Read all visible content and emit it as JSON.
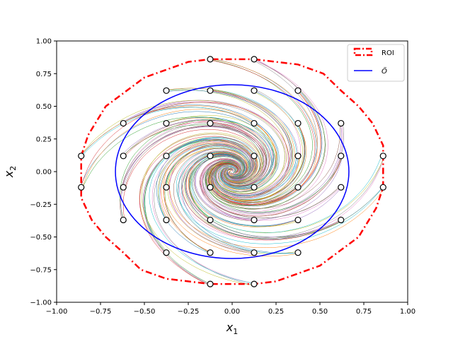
{
  "chart_data": {
    "type": "line",
    "xlabel": "x",
    "xlabel_sub": "1",
    "ylabel": "x",
    "ylabel_sub": "2",
    "xlim": [
      -1.0,
      1.0
    ],
    "ylim": [
      -1.0,
      1.0
    ],
    "xticks": [
      "-1.00",
      "-0.75",
      "-0.50",
      "-0.25",
      "0.00",
      "0.25",
      "0.50",
      "0.75",
      "1.00"
    ],
    "yticks": [
      "-1.00",
      "-0.75",
      "-0.50",
      "-0.25",
      "0.00",
      "0.25",
      "0.50",
      "0.75",
      "1.00"
    ],
    "grid": false,
    "legend": {
      "placement": "top-right",
      "entries": [
        {
          "label": "ROI",
          "color": "#ff0000",
          "style": "dashdot-box"
        },
        {
          "label": "Õ",
          "color": "#0000ff",
          "style": "solid-line"
        }
      ]
    },
    "roi_boundary": {
      "color": "#ff0000",
      "points": [
        [
          0.125,
          0.86
        ],
        [
          0.375,
          0.82
        ],
        [
          0.52,
          0.75
        ],
        [
          0.62,
          0.62
        ],
        [
          0.72,
          0.5
        ],
        [
          0.8,
          0.37
        ],
        [
          0.86,
          0.2
        ],
        [
          0.86,
          0.12
        ],
        [
          0.86,
          -0.12
        ],
        [
          0.82,
          -0.28
        ],
        [
          0.72,
          -0.5
        ],
        [
          0.6,
          -0.62
        ],
        [
          0.5,
          -0.72
        ],
        [
          0.25,
          -0.84
        ],
        [
          0.125,
          -0.86
        ],
        [
          -0.125,
          -0.86
        ],
        [
          -0.375,
          -0.82
        ],
        [
          -0.52,
          -0.75
        ],
        [
          -0.62,
          -0.62
        ],
        [
          -0.72,
          -0.5
        ],
        [
          -0.8,
          -0.37
        ],
        [
          -0.86,
          -0.2
        ],
        [
          -0.86,
          -0.12
        ],
        [
          -0.86,
          0.12
        ],
        [
          -0.82,
          0.28
        ],
        [
          -0.72,
          0.5
        ],
        [
          -0.6,
          0.62
        ],
        [
          -0.5,
          0.72
        ],
        [
          -0.25,
          0.84
        ],
        [
          -0.125,
          0.86
        ],
        [
          0.125,
          0.86
        ]
      ]
    },
    "ellipse": {
      "color": "#0000ff",
      "center": [
        0.0,
        0.0
      ],
      "rx": 0.665,
      "ry": 0.665
    },
    "initial_points": [
      [
        -0.125,
        0.86
      ],
      [
        0.125,
        0.86
      ],
      [
        -0.375,
        0.62
      ],
      [
        -0.125,
        0.62
      ],
      [
        0.125,
        0.62
      ],
      [
        0.375,
        0.62
      ],
      [
        -0.62,
        0.37
      ],
      [
        -0.375,
        0.37
      ],
      [
        -0.125,
        0.37
      ],
      [
        0.125,
        0.37
      ],
      [
        0.375,
        0.37
      ],
      [
        0.62,
        0.37
      ],
      [
        -0.86,
        0.12
      ],
      [
        -0.62,
        0.12
      ],
      [
        -0.375,
        0.12
      ],
      [
        -0.125,
        0.12
      ],
      [
        0.125,
        0.12
      ],
      [
        0.375,
        0.12
      ],
      [
        0.62,
        0.12
      ],
      [
        0.86,
        0.12
      ],
      [
        -0.86,
        -0.12
      ],
      [
        -0.62,
        -0.12
      ],
      [
        -0.375,
        -0.12
      ],
      [
        -0.125,
        -0.12
      ],
      [
        0.125,
        -0.12
      ],
      [
        0.375,
        -0.12
      ],
      [
        0.62,
        -0.12
      ],
      [
        0.86,
        -0.12
      ],
      [
        -0.62,
        -0.37
      ],
      [
        -0.375,
        -0.37
      ],
      [
        -0.125,
        -0.37
      ],
      [
        0.125,
        -0.37
      ],
      [
        0.375,
        -0.37
      ],
      [
        0.62,
        -0.37
      ],
      [
        -0.375,
        -0.62
      ],
      [
        -0.125,
        -0.62
      ],
      [
        0.125,
        -0.62
      ],
      [
        0.375,
        -0.62
      ],
      [
        -0.125,
        -0.86
      ],
      [
        0.125,
        -0.86
      ]
    ],
    "trajectory_colors": [
      "#1f77b4",
      "#ff7f0e",
      "#2ca02c",
      "#d62728",
      "#9467bd",
      "#8c564b",
      "#e377c2",
      "#7f7f7f",
      "#bcbd22",
      "#17becf"
    ]
  }
}
